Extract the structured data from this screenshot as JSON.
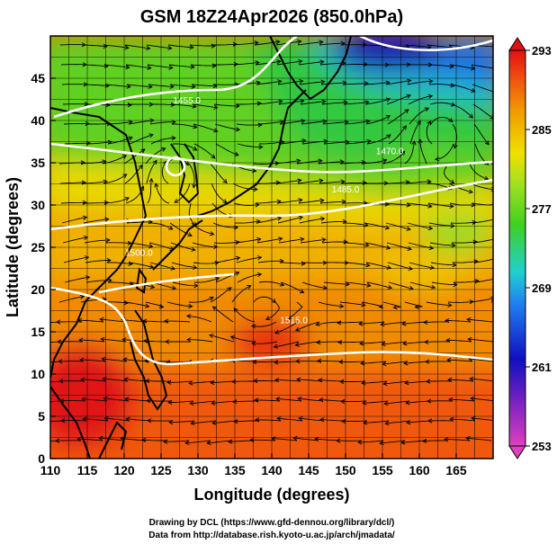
{
  "title": "GSM 18Z24Apr2026 (850.0hPa)",
  "x_axis": {
    "label": "Longitude (degrees)",
    "range": [
      110,
      170
    ],
    "ticks": [
      "110",
      "115",
      "120",
      "125",
      "130",
      "135",
      "140",
      "145",
      "150",
      "155",
      "160",
      "165"
    ]
  },
  "y_axis": {
    "label": "Latitude  (degrees)",
    "range": [
      0,
      50
    ],
    "ticks": [
      "0",
      "5",
      "10",
      "15",
      "20",
      "25",
      "30",
      "35",
      "40",
      "45"
    ]
  },
  "colorbar": {
    "range": [
      253,
      293
    ],
    "ticks": [
      "293",
      "285",
      "277",
      "269",
      "261",
      "253"
    ]
  },
  "contour_labels": [
    {
      "text": "1455.0",
      "lon": 128.5,
      "lat": 42
    },
    {
      "text": "1470.0",
      "lon": 156,
      "lat": 36
    },
    {
      "text": "1485.0",
      "lon": 150,
      "lat": 31.5
    },
    {
      "text": "1500.0",
      "lon": 122,
      "lat": 24
    },
    {
      "text": "1515.0",
      "lon": 143,
      "lat": 16
    }
  ],
  "credits": [
    "Drawing by DCL (https://www.gfd-dennou.org/library/dcl/)",
    "Data from http://database.rish.kyoto-u.ac.jp/arch/jmadata/"
  ],
  "colors": {
    "palette": [
      "#e040c0",
      "#1010c0",
      "#2080f0",
      "#20d0d0",
      "#40d020",
      "#a0e020",
      "#f0e000",
      "#f0a000",
      "#f05010",
      "#e01010"
    ],
    "contour": "#ffffff",
    "coast": "#000000",
    "streamline": "#000000"
  }
}
